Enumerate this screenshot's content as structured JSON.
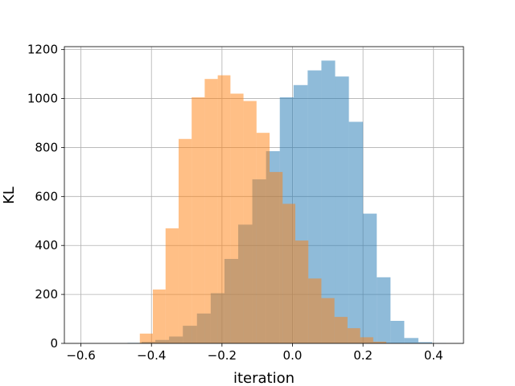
{
  "chart_data": {
    "type": "bar",
    "title": "",
    "xlabel": "iteration",
    "ylabel": "KL",
    "xlim": [
      -0.647,
      0.485
    ],
    "ylim": [
      0,
      1212
    ],
    "grid": true,
    "xticks": [
      -0.6,
      -0.4,
      -0.2,
      0.0,
      0.2,
      0.4
    ],
    "xtick_labels": [
      "−0.6",
      "−0.4",
      "−0.2",
      "0.0",
      "0.2",
      "0.4"
    ],
    "yticks": [
      0,
      200,
      400,
      600,
      800,
      1000,
      1200
    ],
    "ytick_labels": [
      "0",
      "200",
      "400",
      "600",
      "800",
      "1000",
      "1200"
    ],
    "series": [
      {
        "color": "#1f77b4",
        "opacity": 0.5,
        "bins": [
          {
            "x0": -0.468,
            "x1": -0.428,
            "count": 2
          },
          {
            "x0": -0.428,
            "x1": -0.389,
            "count": 6
          },
          {
            "x0": -0.389,
            "x1": -0.35,
            "count": 14
          },
          {
            "x0": -0.35,
            "x1": -0.311,
            "count": 28
          },
          {
            "x0": -0.311,
            "x1": -0.271,
            "count": 72
          },
          {
            "x0": -0.271,
            "x1": -0.232,
            "count": 122
          },
          {
            "x0": -0.232,
            "x1": -0.193,
            "count": 205
          },
          {
            "x0": -0.193,
            "x1": -0.154,
            "count": 345
          },
          {
            "x0": -0.154,
            "x1": -0.114,
            "count": 485
          },
          {
            "x0": -0.114,
            "x1": -0.075,
            "count": 670
          },
          {
            "x0": -0.075,
            "x1": -0.036,
            "count": 785
          },
          {
            "x0": -0.036,
            "x1": 0.003,
            "count": 1005
          },
          {
            "x0": 0.003,
            "x1": 0.043,
            "count": 1055
          },
          {
            "x0": 0.043,
            "x1": 0.082,
            "count": 1115
          },
          {
            "x0": 0.082,
            "x1": 0.121,
            "count": 1155
          },
          {
            "x0": 0.121,
            "x1": 0.16,
            "count": 1090
          },
          {
            "x0": 0.16,
            "x1": 0.2,
            "count": 905
          },
          {
            "x0": 0.2,
            "x1": 0.239,
            "count": 530
          },
          {
            "x0": 0.239,
            "x1": 0.278,
            "count": 270
          },
          {
            "x0": 0.278,
            "x1": 0.317,
            "count": 92
          },
          {
            "x0": 0.317,
            "x1": 0.357,
            "count": 22
          },
          {
            "x0": 0.357,
            "x1": 0.396,
            "count": 5
          },
          {
            "x0": 0.396,
            "x1": 0.435,
            "count": 1
          }
        ]
      },
      {
        "color": "#ff7f0e",
        "opacity": 0.5,
        "bins": [
          {
            "x0": -0.433,
            "x1": -0.396,
            "count": 40
          },
          {
            "x0": -0.396,
            "x1": -0.36,
            "count": 220
          },
          {
            "x0": -0.36,
            "x1": -0.323,
            "count": 470
          },
          {
            "x0": -0.323,
            "x1": -0.286,
            "count": 835
          },
          {
            "x0": -0.286,
            "x1": -0.249,
            "count": 1005
          },
          {
            "x0": -0.249,
            "x1": -0.212,
            "count": 1080
          },
          {
            "x0": -0.212,
            "x1": -0.176,
            "count": 1095
          },
          {
            "x0": -0.176,
            "x1": -0.139,
            "count": 1020
          },
          {
            "x0": -0.139,
            "x1": -0.102,
            "count": 990
          },
          {
            "x0": -0.102,
            "x1": -0.065,
            "count": 860
          },
          {
            "x0": -0.065,
            "x1": -0.028,
            "count": 700
          },
          {
            "x0": -0.028,
            "x1": 0.008,
            "count": 570
          },
          {
            "x0": 0.008,
            "x1": 0.045,
            "count": 420
          },
          {
            "x0": 0.045,
            "x1": 0.082,
            "count": 265
          },
          {
            "x0": 0.082,
            "x1": 0.119,
            "count": 185
          },
          {
            "x0": 0.119,
            "x1": 0.156,
            "count": 108
          },
          {
            "x0": 0.156,
            "x1": 0.192,
            "count": 62
          },
          {
            "x0": 0.192,
            "x1": 0.229,
            "count": 25
          },
          {
            "x0": 0.229,
            "x1": 0.266,
            "count": 7
          }
        ]
      }
    ]
  }
}
